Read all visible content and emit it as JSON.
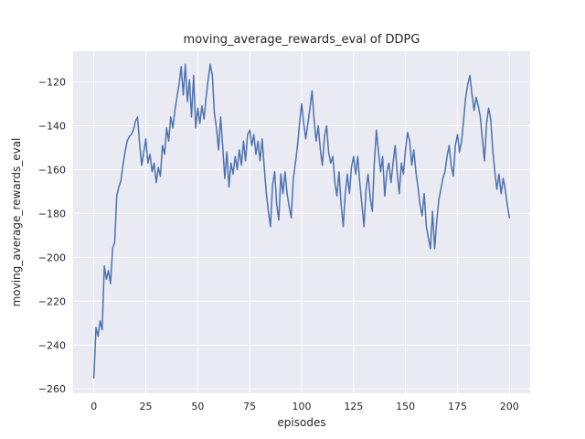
{
  "chart_data": {
    "type": "line",
    "title": "moving_average_rewards_eval of DDPG",
    "xlabel": "episodes",
    "ylabel": "moving_average_rewards_eval",
    "xlim": [
      -10,
      210
    ],
    "ylim": [
      -262,
      -106
    ],
    "xticks": [
      0,
      25,
      50,
      75,
      100,
      125,
      150,
      175,
      200
    ],
    "yticks": [
      -260,
      -240,
      -220,
      -200,
      -180,
      -160,
      -140,
      -120
    ],
    "grid": true,
    "legend_position": "none",
    "series": [
      {
        "name": "moving_average_rewards_eval",
        "x_start": 0,
        "x_step": 1,
        "values": [
          -255,
          -232,
          -236,
          -229,
          -233,
          -204,
          -210,
          -206,
          -212,
          -196,
          -193,
          -172,
          -168,
          -165,
          -158,
          -152,
          -147,
          -145,
          -144,
          -142,
          -138,
          -136,
          -148,
          -158,
          -152,
          -146,
          -157,
          -153,
          -161,
          -157,
          -166,
          -159,
          -163,
          -149,
          -153,
          -141,
          -147,
          -136,
          -141,
          -133,
          -127,
          -121,
          -113,
          -126,
          -112,
          -129,
          -119,
          -136,
          -117,
          -141,
          -132,
          -139,
          -131,
          -137,
          -127,
          -119,
          -112,
          -117,
          -134,
          -141,
          -151,
          -136,
          -149,
          -164,
          -152,
          -168,
          -157,
          -162,
          -154,
          -160,
          -151,
          -158,
          -147,
          -156,
          -144,
          -142,
          -149,
          -144,
          -153,
          -147,
          -156,
          -146,
          -159,
          -171,
          -179,
          -186,
          -167,
          -161,
          -176,
          -183,
          -162,
          -171,
          -161,
          -171,
          -177,
          -182,
          -164,
          -157,
          -149,
          -139,
          -130,
          -139,
          -146,
          -139,
          -132,
          -124,
          -137,
          -147,
          -140,
          -151,
          -158,
          -145,
          -140,
          -152,
          -157,
          -154,
          -166,
          -172,
          -161,
          -176,
          -186,
          -171,
          -162,
          -171,
          -159,
          -154,
          -162,
          -154,
          -166,
          -176,
          -186,
          -169,
          -162,
          -173,
          -179,
          -157,
          -142,
          -152,
          -161,
          -154,
          -172,
          -161,
          -157,
          -166,
          -157,
          -149,
          -161,
          -171,
          -157,
          -162,
          -151,
          -143,
          -147,
          -158,
          -151,
          -161,
          -168,
          -176,
          -181,
          -171,
          -186,
          -191,
          -196,
          -179,
          -196,
          -184,
          -174,
          -169,
          -164,
          -161,
          -154,
          -149,
          -158,
          -163,
          -149,
          -144,
          -152,
          -147,
          -137,
          -127,
          -121,
          -117,
          -126,
          -133,
          -127,
          -131,
          -136,
          -146,
          -156,
          -139,
          -132,
          -137,
          -151,
          -161,
          -169,
          -162,
          -171,
          -164,
          -169,
          -176,
          -182
        ]
      }
    ],
    "colors": {
      "line": "#4c72b0",
      "plot_background": "#eaeaf2",
      "grid": "#ffffff",
      "figure_background": "#ffffff",
      "text": "#262626"
    }
  }
}
